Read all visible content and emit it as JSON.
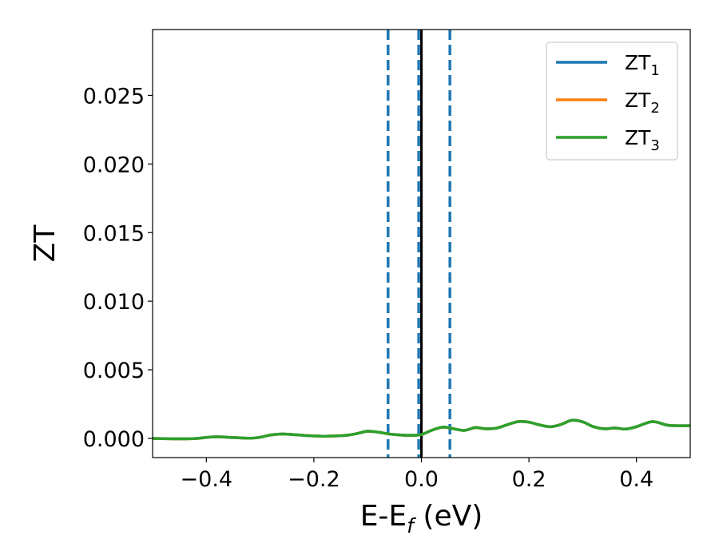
{
  "chart_data": {
    "type": "line",
    "title": "",
    "xlabel": {
      "main": "E-E",
      "sub": "f",
      "rest": " (eV)"
    },
    "ylabel": "ZT",
    "xlim": [
      -0.5,
      0.5
    ],
    "ylim": [
      -0.0014,
      0.0298
    ],
    "xticks": [
      -0.4,
      -0.2,
      0.0,
      0.2,
      0.4
    ],
    "xtick_labels": [
      "−0.4",
      "−0.2",
      "0.0",
      "0.2",
      "0.4"
    ],
    "yticks": [
      0.0,
      0.005,
      0.01,
      0.015,
      0.02,
      0.025
    ],
    "ytick_labels": [
      "0.000",
      "0.005",
      "0.010",
      "0.015",
      "0.020",
      "0.025"
    ],
    "grid": false,
    "legend_position": "top-right",
    "vertical_lines": [
      {
        "x": -0.062,
        "style": "dashed",
        "color": "#1f77b4"
      },
      {
        "x": -0.005,
        "style": "dashed",
        "color": "#1f77b4"
      },
      {
        "x": 0.053,
        "style": "dashed",
        "color": "#1f77b4"
      },
      {
        "x": 0.0,
        "style": "solid",
        "color": "#000000"
      }
    ],
    "x": [
      -0.5,
      -0.45,
      -0.42,
      -0.4,
      -0.38,
      -0.35,
      -0.32,
      -0.3,
      -0.28,
      -0.26,
      -0.24,
      -0.22,
      -0.2,
      -0.18,
      -0.16,
      -0.14,
      -0.12,
      -0.1,
      -0.08,
      -0.06,
      -0.04,
      -0.02,
      0.0,
      0.02,
      0.04,
      0.06,
      0.08,
      0.1,
      0.12,
      0.14,
      0.16,
      0.18,
      0.2,
      0.22,
      0.24,
      0.26,
      0.28,
      0.3,
      0.32,
      0.34,
      0.36,
      0.38,
      0.4,
      0.43,
      0.46,
      0.5
    ],
    "series": [
      {
        "name": {
          "main": "ZT",
          "sub": "1"
        },
        "color": "#1f77b4",
        "values": [
          0.0,
          -3e-05,
          -1e-05,
          7e-05,
          0.00011,
          6e-05,
          1e-05,
          8e-05,
          0.00025,
          0.00032,
          0.00028,
          0.00022,
          0.00018,
          0.00016,
          0.00018,
          0.00022,
          0.00035,
          0.00052,
          0.00045,
          0.00032,
          0.00025,
          0.00022,
          0.00028,
          0.0006,
          0.00082,
          0.0007,
          0.00058,
          0.00078,
          0.0007,
          0.00075,
          0.001,
          0.00122,
          0.00118,
          0.00098,
          0.00085,
          0.00102,
          0.00132,
          0.0012,
          0.00085,
          0.0007,
          0.00075,
          0.00068,
          0.00085,
          0.00122,
          0.00095,
          0.00092
        ]
      },
      {
        "name": {
          "main": "ZT",
          "sub": "2"
        },
        "color": "#ff7f0e",
        "values": [
          0.0,
          -3e-05,
          -1e-05,
          7e-05,
          0.00011,
          6e-05,
          1e-05,
          8e-05,
          0.00025,
          0.00032,
          0.00028,
          0.00022,
          0.00018,
          0.00016,
          0.00018,
          0.00022,
          0.00035,
          0.00052,
          0.00045,
          0.00032,
          0.00025,
          0.00022,
          0.00028,
          0.0006,
          0.00082,
          0.0007,
          0.00058,
          0.00078,
          0.0007,
          0.00075,
          0.001,
          0.00122,
          0.00118,
          0.00098,
          0.00085,
          0.00102,
          0.00132,
          0.0012,
          0.00085,
          0.0007,
          0.00075,
          0.00068,
          0.00085,
          0.00122,
          0.00095,
          0.00092
        ]
      },
      {
        "name": {
          "main": "ZT",
          "sub": "3"
        },
        "color": "#2ca02c",
        "values": [
          0.0,
          -3e-05,
          -1e-05,
          7e-05,
          0.00011,
          6e-05,
          1e-05,
          8e-05,
          0.00025,
          0.00032,
          0.00028,
          0.00022,
          0.00018,
          0.00016,
          0.00018,
          0.00022,
          0.00035,
          0.00052,
          0.00045,
          0.00032,
          0.00025,
          0.00022,
          0.00028,
          0.0006,
          0.00082,
          0.0007,
          0.00058,
          0.00078,
          0.0007,
          0.00075,
          0.001,
          0.00122,
          0.00118,
          0.00098,
          0.00085,
          0.00102,
          0.00132,
          0.0012,
          0.00085,
          0.0007,
          0.00075,
          0.00068,
          0.00085,
          0.00122,
          0.00095,
          0.00092
        ]
      }
    ]
  }
}
